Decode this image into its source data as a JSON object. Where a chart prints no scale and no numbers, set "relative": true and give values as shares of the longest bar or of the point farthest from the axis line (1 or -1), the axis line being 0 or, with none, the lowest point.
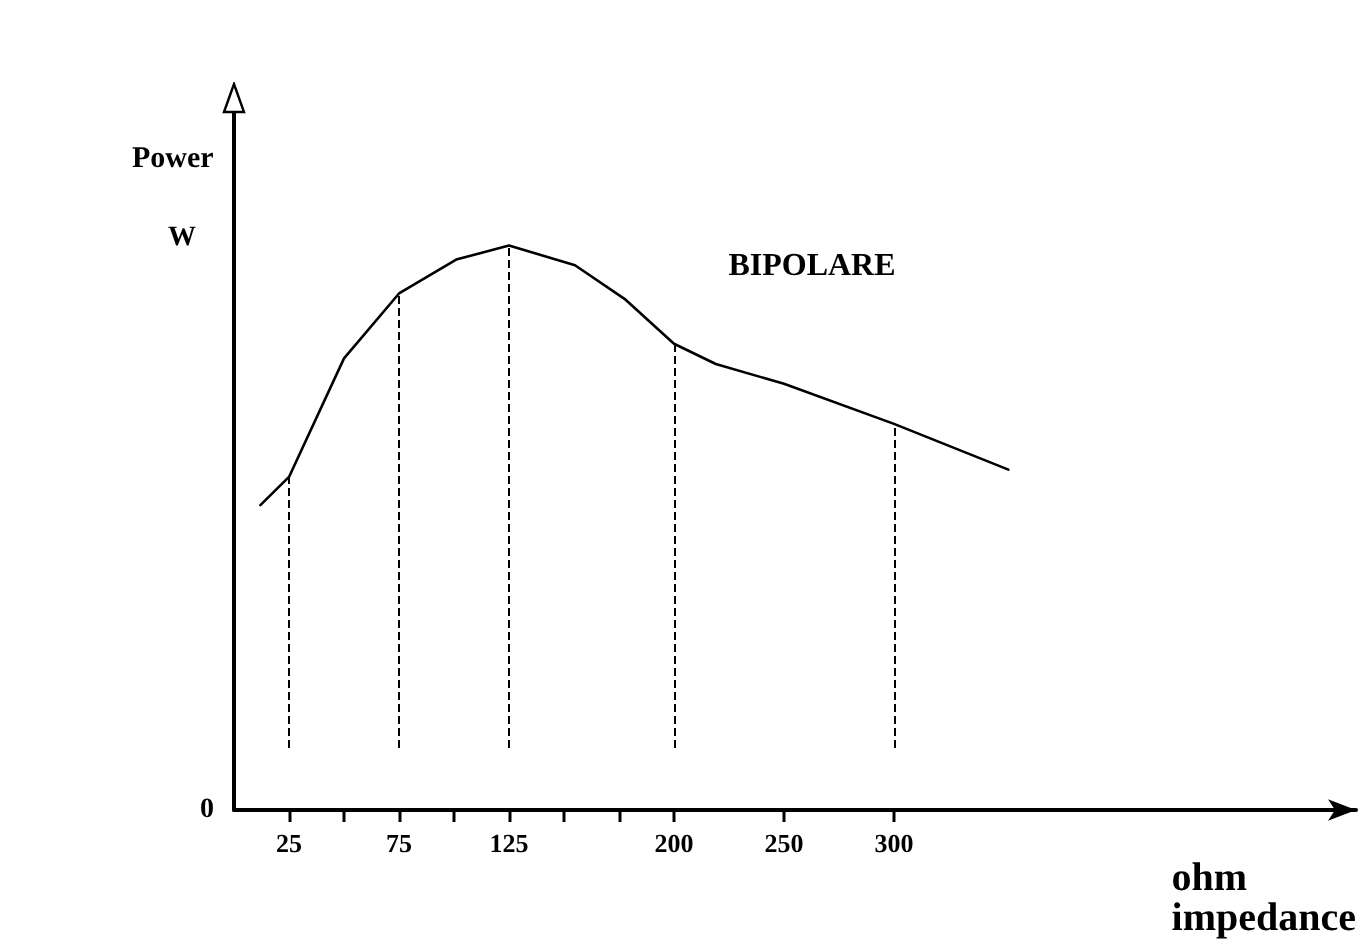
{
  "chart_data": {
    "type": "line",
    "relative": true,
    "xlabel": "ohm\nimpedance",
    "ylabel": "Power",
    "x": [
      12,
      25,
      50,
      75,
      101,
      125,
      155,
      178,
      200,
      219,
      250,
      300,
      352
    ],
    "series": [
      {
        "name": "BIPOLARE",
        "color": "#000000",
        "values": [
          0.54,
          0.59,
          0.8,
          0.915,
          0.975,
          1.0,
          0.965,
          0.904,
          0.826,
          0.79,
          0.755,
          0.684,
          0.603
        ]
      }
    ],
    "xlim": [
      0,
      510
    ],
    "xticks": [
      25,
      {
        "value": 50,
        "label": null
      },
      75,
      {
        "value": 100,
        "label": null
      },
      125,
      {
        "value": 150,
        "label": null
      },
      {
        "value": 175,
        "label": null
      },
      200,
      250,
      300
    ],
    "ref_lines": [
      {
        "axis": "x",
        "value": 25,
        "color": "#000000",
        "line_style": "dashed"
      },
      {
        "axis": "x",
        "value": 75,
        "color": "#000000",
        "line_style": "dashed"
      },
      {
        "axis": "x",
        "value": 125,
        "color": "#000000",
        "line_style": "dashed"
      },
      {
        "axis": "x",
        "value": 200,
        "color": "#000000",
        "line_style": "dashed"
      },
      {
        "axis": "x",
        "value": 300,
        "color": "#000000",
        "line_style": "dashed"
      }
    ],
    "annotations": [
      "W",
      "0"
    ],
    "grid": false,
    "legend": false,
    "marker": "none",
    "line_style": "solid"
  }
}
